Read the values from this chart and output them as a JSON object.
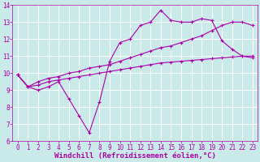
{
  "background_color": "#caeaea",
  "grid_color": "#ffffff",
  "line_color": "#aa00aa",
  "xlabel": "Windchill (Refroidissement éolien,°C)",
  "xlabel_fontsize": 6.5,
  "tick_fontsize": 5.5,
  "xlim": [
    -0.5,
    23.5
  ],
  "ylim": [
    6,
    14
  ],
  "xticks": [
    0,
    1,
    2,
    3,
    4,
    5,
    6,
    7,
    8,
    9,
    10,
    11,
    12,
    13,
    14,
    15,
    16,
    17,
    18,
    19,
    20,
    21,
    22,
    23
  ],
  "yticks": [
    6,
    7,
    8,
    9,
    10,
    11,
    12,
    13,
    14
  ],
  "line1_x": [
    0,
    1,
    2,
    3,
    4,
    5,
    6,
    7,
    8,
    9,
    10,
    11,
    12,
    13,
    14,
    15,
    16,
    17,
    18,
    19,
    20,
    21,
    22,
    23
  ],
  "line1_y": [
    9.9,
    9.2,
    9.0,
    9.2,
    9.5,
    8.5,
    7.5,
    6.5,
    8.3,
    10.7,
    11.8,
    12.0,
    12.8,
    13.0,
    13.7,
    13.1,
    13.0,
    13.0,
    13.2,
    13.1,
    11.9,
    11.4,
    11.0,
    10.9
  ],
  "line2_x": [
    0,
    1,
    2,
    3,
    4,
    5,
    6,
    7,
    8,
    9,
    10,
    11,
    12,
    13,
    14,
    15,
    16,
    17,
    18,
    19,
    20,
    21,
    22,
    23
  ],
  "line2_y": [
    9.9,
    9.2,
    9.5,
    9.7,
    9.8,
    10.0,
    10.1,
    10.3,
    10.4,
    10.5,
    10.7,
    10.9,
    11.1,
    11.3,
    11.5,
    11.6,
    11.8,
    12.0,
    12.2,
    12.5,
    12.8,
    13.0,
    13.0,
    12.8
  ],
  "line3_x": [
    0,
    1,
    2,
    3,
    4,
    5,
    6,
    7,
    8,
    9,
    10,
    11,
    12,
    13,
    14,
    15,
    16,
    17,
    18,
    19,
    20,
    21,
    22,
    23
  ],
  "line3_y": [
    9.9,
    9.2,
    9.3,
    9.5,
    9.6,
    9.7,
    9.8,
    9.9,
    10.0,
    10.1,
    10.2,
    10.3,
    10.4,
    10.5,
    10.6,
    10.65,
    10.7,
    10.75,
    10.8,
    10.85,
    10.9,
    10.95,
    11.0,
    11.0
  ]
}
